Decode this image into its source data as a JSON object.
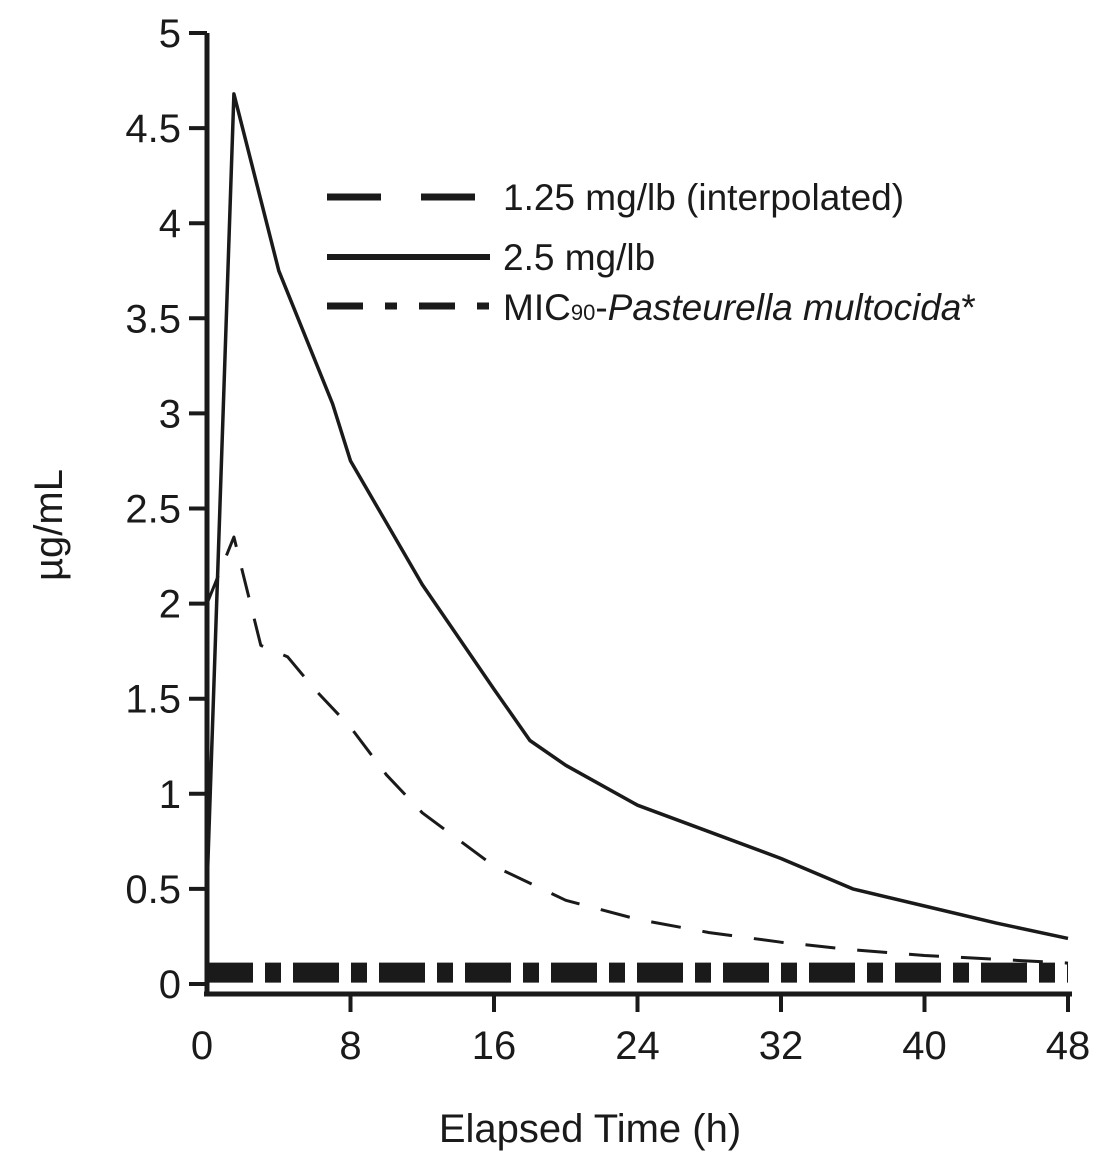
{
  "chart_data": {
    "type": "line",
    "title": "",
    "xlabel": "Elapsed Time (h)",
    "ylabel": "µg/mL",
    "xlim": [
      0,
      48
    ],
    "ylim": [
      0,
      5
    ],
    "x_ticks": [
      0,
      8,
      16,
      24,
      32,
      40,
      48
    ],
    "y_ticks": [
      0,
      0.5,
      1,
      1.5,
      2,
      2.5,
      3,
      3.5,
      4,
      4.5,
      5
    ],
    "y_tick_labels": [
      "0",
      "0.5",
      "1",
      "1.5",
      "2",
      "2.5",
      "3",
      "3.5",
      "4",
      "4.5",
      "5"
    ],
    "grid": false,
    "legend_position": "top-right",
    "series": [
      {
        "name": "1.25 mg/lb (interpolated)",
        "style": "dashed",
        "color": "#1a1a1a",
        "x": [
          0,
          1.5,
          3,
          4.5,
          6,
          8,
          10,
          12,
          16,
          20,
          24,
          28,
          32,
          36,
          40,
          44,
          48
        ],
        "y": [
          2.0,
          2.35,
          1.78,
          1.72,
          1.55,
          1.35,
          1.1,
          0.9,
          0.62,
          0.44,
          0.34,
          0.27,
          0.22,
          0.18,
          0.15,
          0.13,
          0.11
        ]
      },
      {
        "name": "2.5 mg/lb",
        "style": "solid",
        "color": "#1a1a1a",
        "x": [
          0,
          1.5,
          4,
          7,
          8,
          12,
          16,
          18,
          20,
          24,
          28,
          32,
          36,
          40,
          44,
          48
        ],
        "y": [
          0.5,
          4.68,
          3.75,
          3.05,
          2.75,
          2.1,
          1.55,
          1.28,
          1.15,
          0.94,
          0.8,
          0.66,
          0.5,
          0.41,
          0.32,
          0.24
        ]
      },
      {
        "name_prefix": "MIC",
        "name_subscript": "90",
        "name_separator": "-",
        "name_italic": "Pasteurella multocida",
        "name_suffix": "*",
        "style": "dash-dot",
        "color": "#1a1a1a",
        "x": [
          0,
          48
        ],
        "y": [
          0.06,
          0.06
        ]
      }
    ]
  }
}
